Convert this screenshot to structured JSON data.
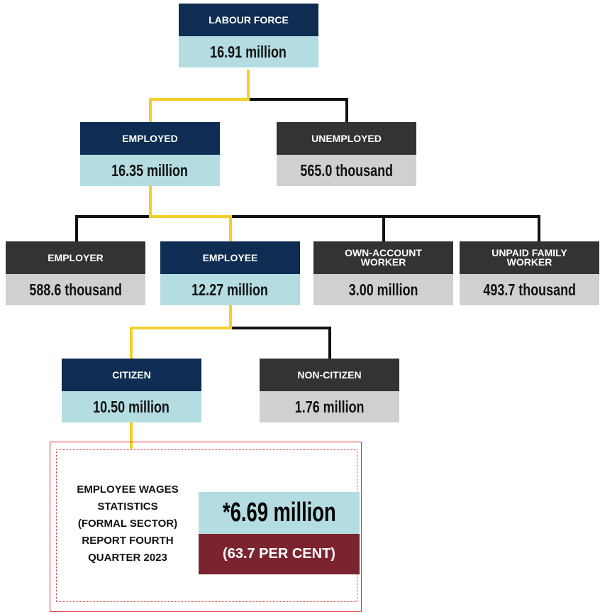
{
  "nodes": [
    {
      "title": "LABOUR FORCE",
      "value": "16.91 million"
    },
    {
      "title": "EMPLOYED",
      "value": "16.35 million"
    },
    {
      "title": "UNEMPLOYED",
      "value": "565.0 thousand"
    },
    {
      "title": "EMPLOYER",
      "value": "588.6 thousand"
    },
    {
      "title": "EMPLOYEE",
      "value": "12.27 million"
    },
    {
      "title": "OWN-ACCOUNT WORKER",
      "value": "3.00 million"
    },
    {
      "title": "UNPAID FAMILY WORKER",
      "value": "493.7 thousand"
    },
    {
      "title": "CITIZEN",
      "value": "10.50 million"
    },
    {
      "title": "NON-CITIZEN",
      "value": "1.76 million"
    }
  ],
  "wages": {
    "lines": [
      "EMPLOYEE WAGES",
      "STATISTICS",
      "(FORMAL SECTOR)",
      "REPORT FOURTH",
      "QUARTER 2023"
    ],
    "value": "*6.69 million",
    "share": "(63.7 PER CENT)"
  }
}
